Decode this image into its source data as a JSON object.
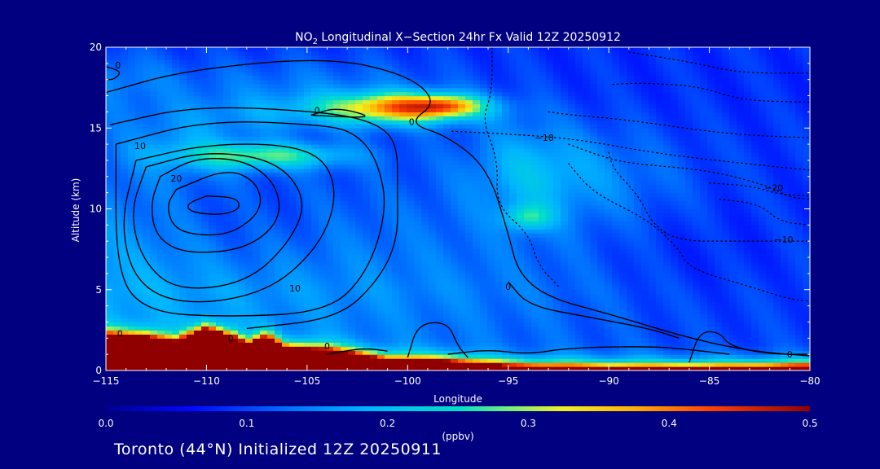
{
  "chart_data": {
    "type": "heatmap",
    "title_prefix": "NO",
    "title_sub": "2",
    "title_rest": " Longitudinal X−Section 24hr  Fx Valid 12Z 20250912",
    "xlabel": "Longitude",
    "ylabel": "Altitude (km)",
    "xlim": [
      -115,
      -80
    ],
    "ylim": [
      0,
      20
    ],
    "x_ticks": [
      -115,
      -110,
      -105,
      -100,
      -95,
      -90,
      -85,
      -80
    ],
    "x_tick_labels": [
      "−115",
      "−110",
      "−105",
      "−100",
      "−95",
      "−90",
      "−85",
      "−80"
    ],
    "y_ticks": [
      0,
      5,
      10,
      15,
      20
    ],
    "y_tick_labels": [
      "0",
      "5",
      "10",
      "15",
      "20"
    ],
    "colorbar": {
      "vmin": 0.0,
      "vmax": 0.5,
      "ticks": [
        0.0,
        0.1,
        0.2,
        0.3,
        0.4,
        0.5
      ],
      "tick_labels": [
        "0.0",
        "0.1",
        "0.2",
        "0.3",
        "0.4",
        "0.5"
      ],
      "label": "(ppbv)"
    },
    "no2_blobs": [
      {
        "lon": -100,
        "alt": 16.3,
        "sx": 3.5,
        "sy": 0.9,
        "v": 0.27
      },
      {
        "lon": -98,
        "alt": 16.4,
        "sx": 1.6,
        "sy": 0.6,
        "v": 0.13
      },
      {
        "lon": -104,
        "alt": 16.0,
        "sx": 6.0,
        "sy": 1.2,
        "v": 0.06
      },
      {
        "lon": -107,
        "alt": 13.3,
        "sx": 4.0,
        "sy": 0.8,
        "v": 0.16
      },
      {
        "lon": -111,
        "alt": 14.0,
        "sx": 3.5,
        "sy": 2.0,
        "v": 0.06
      },
      {
        "lon": -115,
        "alt": 18.0,
        "sx": 3.5,
        "sy": 2.0,
        "v": 0.05
      },
      {
        "lon": -94,
        "alt": 9.5,
        "sx": 1.2,
        "sy": 0.8,
        "v": 0.12
      },
      {
        "lon": -94,
        "alt": 12.5,
        "sx": 3.0,
        "sy": 3.0,
        "v": 0.08
      },
      {
        "lon": -90,
        "alt": 12.0,
        "sx": 4.0,
        "sy": 3.0,
        "v": 0.04
      },
      {
        "lon": -105,
        "alt": 17.5,
        "sx": 8.0,
        "sy": 2.0,
        "v": 0.05
      }
    ],
    "surface_terrain": [
      {
        "lon": -115,
        "alt": 2.2
      },
      {
        "lon": -113,
        "alt": 2.1
      },
      {
        "lon": -111.5,
        "alt": 1.8
      },
      {
        "lon": -110,
        "alt": 2.6
      },
      {
        "lon": -108.5,
        "alt": 2.0
      },
      {
        "lon": -108,
        "alt": 1.6
      },
      {
        "lon": -107,
        "alt": 2.1
      },
      {
        "lon": -106,
        "alt": 1.4
      },
      {
        "lon": -104,
        "alt": 1.3
      },
      {
        "lon": -103,
        "alt": 1.1
      },
      {
        "lon": -101,
        "alt": 0.7
      },
      {
        "lon": -98,
        "alt": 0.6
      },
      {
        "lon": -95,
        "alt": 0.3
      },
      {
        "lon": -90,
        "alt": 0.2
      },
      {
        "lon": -85,
        "alt": 0.2
      },
      {
        "lon": -80,
        "alt": 0.3
      }
    ],
    "contours": [
      {
        "label": "20",
        "style": "solid",
        "points": [
          [
            -110,
            10.8
          ],
          [
            -108.5,
            10.7
          ],
          [
            -108.3,
            10.0
          ],
          [
            -109.3,
            9.6
          ],
          [
            -110.8,
            9.8
          ],
          [
            -111,
            10.3
          ],
          [
            -110,
            10.8
          ]
        ]
      },
      {
        "label": "20",
        "style": "solid",
        "points": [
          [
            -111.5,
            11.2
          ],
          [
            -109,
            12.5
          ],
          [
            -107.5,
            11.7
          ],
          [
            -107.2,
            10.0
          ],
          [
            -108.5,
            8.6
          ],
          [
            -110,
            8.3
          ],
          [
            -111.6,
            8.7
          ],
          [
            -112,
            10.2
          ],
          [
            -111.5,
            11.2
          ]
        ]
      },
      {
        "label": "",
        "style": "solid",
        "points": [
          [
            -112.3,
            12.0
          ],
          [
            -110.5,
            13.2
          ],
          [
            -108,
            13.0
          ],
          [
            -106.5,
            11.5
          ],
          [
            -106.3,
            9.3
          ],
          [
            -108,
            7.5
          ],
          [
            -111,
            7.2
          ],
          [
            -112.5,
            8.2
          ],
          [
            -112.8,
            10.3
          ],
          [
            -112.3,
            12.0
          ]
        ]
      },
      {
        "label": "",
        "style": "solid",
        "points": [
          [
            -113,
            12.6
          ],
          [
            -110,
            13.6
          ],
          [
            -106.5,
            13.0
          ],
          [
            -105,
            10.6
          ],
          [
            -105.8,
            8.0
          ],
          [
            -108,
            5.4
          ],
          [
            -111.5,
            4.9
          ],
          [
            -113.2,
            6.8
          ],
          [
            -113.8,
            9.8
          ],
          [
            -113,
            12.6
          ]
        ]
      },
      {
        "label": "10",
        "style": "solid",
        "points": [
          [
            -113.5,
            13.0
          ],
          [
            -110,
            14.0
          ],
          [
            -106,
            14.0
          ],
          [
            -104,
            13.0
          ],
          [
            -103.5,
            10.5
          ],
          [
            -104.5,
            7.5
          ],
          [
            -107,
            4.8
          ],
          [
            -111,
            4.0
          ],
          [
            -113.5,
            5.3
          ],
          [
            -114.3,
            9.0
          ],
          [
            -113.5,
            13.0
          ]
        ]
      },
      {
        "label": "",
        "style": "solid",
        "points": [
          [
            -114.5,
            14.0
          ],
          [
            -110,
            15.5
          ],
          [
            -104,
            15.2
          ],
          [
            -102.5,
            14.6
          ],
          [
            -101.5,
            13.0
          ],
          [
            -101,
            10.0
          ],
          [
            -102,
            6.0
          ],
          [
            -104,
            3.6
          ],
          [
            -109,
            3.3
          ],
          [
            -113,
            3.6
          ],
          [
            -114.5,
            6.0
          ],
          [
            -114.5,
            14.0
          ]
        ]
      },
      {
        "label": "",
        "style": "solid",
        "points": [
          [
            -114.8,
            15.2
          ],
          [
            -110.5,
            16.4
          ],
          [
            -104,
            16.0
          ],
          [
            -101.5,
            15.3
          ],
          [
            -100.5,
            14.0
          ],
          [
            -100.5,
            11.0
          ],
          [
            -100.5,
            8.0
          ],
          [
            -101.5,
            5.5
          ],
          [
            -103.5,
            3.2
          ],
          [
            -108,
            2.6
          ]
        ]
      },
      {
        "label": "0",
        "style": "solid",
        "points": [
          [
            -115,
            17.2
          ],
          [
            -111,
            18.6
          ],
          [
            -104,
            19.4
          ],
          [
            -100,
            18.3
          ],
          [
            -98.5,
            16.6
          ],
          [
            -100,
            15.3
          ],
          [
            -98,
            14.5
          ],
          [
            -96,
            12.5
          ],
          [
            -95,
            8.5
          ],
          [
            -94.5,
            6.0
          ],
          [
            -93,
            4.5
          ],
          [
            -90,
            3.5
          ],
          [
            -86,
            2.0
          ],
          [
            -83,
            1.2
          ],
          [
            -80,
            0.9
          ]
        ]
      },
      {
        "label": "0",
        "style": "solid",
        "points": [
          [
            -104.8,
            15.8
          ],
          [
            -103.5,
            16.3
          ],
          [
            -101.5,
            15.6
          ],
          [
            -104.8,
            15.8
          ]
        ]
      },
      {
        "label": "0",
        "style": "solid",
        "points": [
          [
            -115,
            18.8
          ],
          [
            -114.2,
            18.5
          ],
          [
            -114.6,
            18.0
          ],
          [
            -115,
            18.0
          ]
        ]
      },
      {
        "label": "",
        "style": "solid",
        "points": [
          [
            -104,
            1.0
          ],
          [
            -102.2,
            1.4
          ],
          [
            -101,
            1.2
          ]
        ]
      },
      {
        "label": "",
        "style": "solid",
        "points": [
          [
            -100,
            0.8
          ],
          [
            -99.5,
            2.9
          ],
          [
            -98,
            3.0
          ],
          [
            -97.5,
            1.5
          ],
          [
            -97,
            0.8
          ]
        ]
      },
      {
        "label": "",
        "style": "solid",
        "points": [
          [
            -98,
            1.0
          ],
          [
            -96,
            1.3
          ],
          [
            -94,
            1.0
          ],
          [
            -92,
            1.4
          ],
          [
            -88,
            1.5
          ],
          [
            -86,
            1.3
          ],
          [
            -84,
            1.0
          ]
        ]
      },
      {
        "label": "",
        "style": "solid",
        "points": [
          [
            -86,
            0.5
          ],
          [
            -85.5,
            2.4
          ],
          [
            -84.5,
            2.4
          ],
          [
            -84,
            1.5
          ],
          [
            -82,
            1.0
          ],
          [
            -80,
            1.0
          ]
        ]
      },
      {
        "label": "",
        "style": "solid",
        "points": [
          [
            -95,
            5.5
          ],
          [
            -94,
            4.0
          ],
          [
            -91,
            3.3
          ],
          [
            -88,
            2.6
          ],
          [
            -86.5,
            2.0
          ]
        ]
      },
      {
        "label": "",
        "style": "dotted",
        "points": [
          [
            -95.8,
            20
          ],
          [
            -95.8,
            17.2
          ],
          [
            -96.3,
            15.5
          ],
          [
            -95.5,
            13.0
          ],
          [
            -95.6,
            10.2
          ],
          [
            -94.0,
            8.5
          ],
          [
            -93.5,
            6.5
          ],
          [
            -92.5,
            5.2
          ]
        ]
      },
      {
        "label": "",
        "style": "dotted",
        "points": [
          [
            -92,
            12.8
          ],
          [
            -90.8,
            11.0
          ],
          [
            -88,
            9.3
          ],
          [
            -86.5,
            7.5
          ],
          [
            -86,
            6.3
          ],
          [
            -83,
            5.2
          ],
          [
            -81,
            4.4
          ],
          [
            -80,
            4.3
          ]
        ]
      },
      {
        "label": "",
        "style": "dotted",
        "points": [
          [
            -90,
            13.5
          ],
          [
            -89.8,
            12.5
          ],
          [
            -88.5,
            10.8
          ],
          [
            -87.8,
            9.0
          ],
          [
            -86.5,
            8.0
          ],
          [
            -83.5,
            8.0
          ],
          [
            -80,
            8.0
          ]
        ]
      },
      {
        "label": "10",
        "style": "dotted",
        "points": [
          [
            -97.8,
            14.8
          ],
          [
            -94.5,
            14.6
          ],
          [
            -91.5,
            14.3
          ],
          [
            -87.5,
            13.4
          ],
          [
            -82.5,
            12.7
          ],
          [
            -80,
            12.4
          ]
        ]
      },
      {
        "label": "",
        "style": "dotted",
        "points": [
          [
            -93,
            16.0
          ],
          [
            -91.8,
            15.8
          ],
          [
            -89,
            15.5
          ],
          [
            -84,
            14.6
          ],
          [
            -80,
            14.4
          ]
        ]
      },
      {
        "label": "",
        "style": "dotted",
        "points": [
          [
            -89.8,
            17.7
          ],
          [
            -88.5,
            17.8
          ],
          [
            -85.5,
            17.6
          ],
          [
            -83.4,
            16.7
          ],
          [
            -80,
            16.6
          ]
        ]
      },
      {
        "label": "",
        "style": "dotted",
        "points": [
          [
            -89,
            19.7
          ],
          [
            -86,
            19.1
          ],
          [
            -83.5,
            18.4
          ],
          [
            -80,
            18.4
          ]
        ]
      },
      {
        "label": "",
        "style": "dotted",
        "points": [
          [
            -92,
            14.0
          ],
          [
            -90.5,
            13.3
          ],
          [
            -89,
            12.8
          ],
          [
            -85,
            12.4
          ],
          [
            -82,
            11.4
          ],
          [
            -81,
            10.7
          ],
          [
            -80,
            10.6
          ]
        ]
      },
      {
        "label": "",
        "style": "dotted",
        "points": [
          [
            -84.5,
            10.6
          ],
          [
            -82.5,
            10.3
          ],
          [
            -81.5,
            9.2
          ],
          [
            -80,
            9.0
          ]
        ]
      },
      {
        "label": "",
        "style": "dotted",
        "points": [
          [
            -85,
            11.6
          ],
          [
            -82.8,
            11.4
          ],
          [
            -81.6,
            10.9
          ],
          [
            -80,
            10.8
          ]
        ]
      }
    ],
    "contour_labels": [
      {
        "text": "0",
        "lon": -114.4,
        "alt": 18.9
      },
      {
        "text": "0",
        "lon": -104.5,
        "alt": 16.1
      },
      {
        "text": "0",
        "lon": -99.8,
        "alt": 15.4
      },
      {
        "text": "10",
        "lon": -113.3,
        "alt": 13.9
      },
      {
        "text": "20",
        "lon": -111.5,
        "alt": 11.9
      },
      {
        "text": "10",
        "lon": -105.6,
        "alt": 5.1
      },
      {
        "text": "−10",
        "lon": -93.2,
        "alt": 14.4
      },
      {
        "text": "−20",
        "lon": -81.8,
        "alt": 11.3
      },
      {
        "text": "−10",
        "lon": -81.3,
        "alt": 8.1
      },
      {
        "text": "0",
        "lon": -95.0,
        "alt": 5.2
      },
      {
        "text": "0",
        "lon": -104.0,
        "alt": 1.5
      },
      {
        "text": "0",
        "lon": -108.8,
        "alt": 2.0
      },
      {
        "text": "0",
        "lon": -114.3,
        "alt": 2.3
      },
      {
        "text": "0",
        "lon": -81.0,
        "alt": 1.0
      }
    ]
  },
  "footer": "Toronto (44°N) Initialized 12Z 20250911"
}
